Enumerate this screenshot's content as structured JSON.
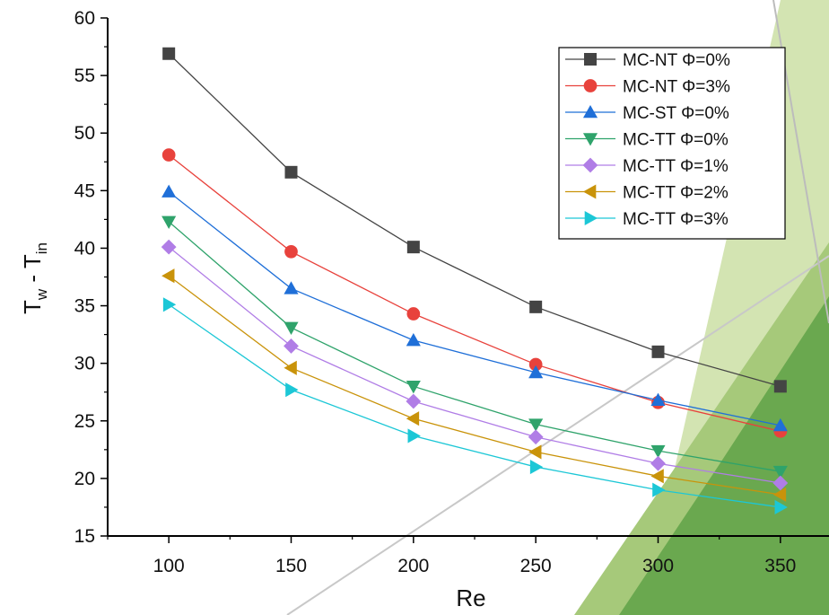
{
  "chart_data": {
    "type": "line",
    "xlabel": "Re",
    "ylabel": {
      "main": "T",
      "sub1": "w",
      "mid": " - T",
      "sub2": "in"
    },
    "xlim": [
      75,
      375
    ],
    "ylim": [
      15,
      60
    ],
    "xticks": [
      100,
      150,
      200,
      250,
      300,
      350
    ],
    "yticks": [
      15,
      20,
      25,
      30,
      35,
      40,
      45,
      50,
      55,
      60
    ],
    "grid": false,
    "legend_position": "top-right",
    "x": [
      100,
      150,
      200,
      250,
      300,
      350
    ],
    "series": [
      {
        "name": "MC-NT Φ=0%",
        "marker": "square",
        "color": "#444444",
        "values": [
          56.9,
          46.6,
          40.1,
          34.9,
          31.0,
          28.0
        ]
      },
      {
        "name": "MC-NT Φ=3%",
        "marker": "circle",
        "color": "#e8423c",
        "values": [
          48.1,
          39.7,
          34.3,
          29.9,
          26.6,
          24.1
        ]
      },
      {
        "name": "MC-ST Φ=0%",
        "marker": "triangle-up",
        "color": "#1f6fd8",
        "values": [
          44.9,
          36.5,
          32.0,
          29.2,
          26.8,
          24.6
        ]
      },
      {
        "name": "MC-TT Φ=0%",
        "marker": "triangle-down",
        "color": "#2fa36b",
        "values": [
          42.3,
          33.1,
          28.0,
          24.7,
          22.4,
          20.6
        ]
      },
      {
        "name": "MC-TT Φ=1%",
        "marker": "diamond",
        "color": "#b07de6",
        "values": [
          40.1,
          31.5,
          26.7,
          23.6,
          21.3,
          19.6
        ]
      },
      {
        "name": "MC-TT Φ=2%",
        "marker": "triangle-left",
        "color": "#c9930a",
        "values": [
          37.6,
          29.6,
          25.2,
          22.3,
          20.2,
          18.6
        ]
      },
      {
        "name": "MC-TT Φ=3%",
        "marker": "triangle-right",
        "color": "#1cc7d6",
        "values": [
          35.1,
          27.7,
          23.7,
          21.0,
          19.0,
          17.5
        ]
      }
    ]
  }
}
